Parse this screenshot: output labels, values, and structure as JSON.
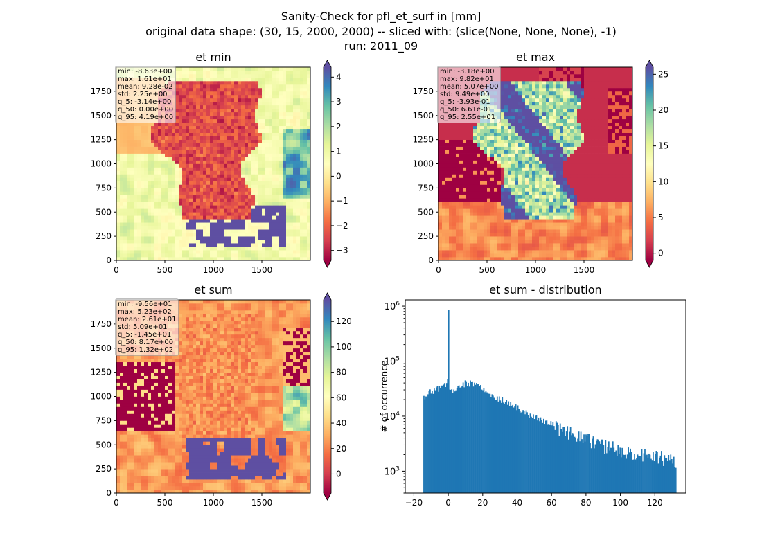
{
  "figure": {
    "title_lines": [
      "Sanity-Check for pfl_et_surf in [mm]",
      "original data shape: (30, 15, 2000, 2000) -- sliced with: (slice(None, None, None), -1)",
      "run: 2011_09"
    ]
  },
  "colors": {
    "hist_bar": "#1f77b4",
    "cmap": "Spectral"
  },
  "chart_data": [
    {
      "type": "heatmap",
      "title": "et min",
      "xlim": [
        0,
        2000
      ],
      "ylim": [
        0,
        2000
      ],
      "xticks": [
        "0",
        "500",
        "1000",
        "1500"
      ],
      "yticks": [
        "0",
        "250",
        "500",
        "750",
        "1000",
        "1250",
        "1500",
        "1750"
      ],
      "colorbar": {
        "range": [
          -3.4,
          4.4
        ],
        "ticks": [
          "−3",
          "−2",
          "−1",
          "0",
          "1",
          "2",
          "3",
          "4"
        ],
        "extend": "both"
      },
      "stats": [
        "min: -8.63e+00",
        "max: 1.61e+01",
        "mean: 9.28e-02",
        "std: 2.25e+00",
        "q_5: -3.14e+00",
        "q_50: 0.00e+00",
        "q_95: 4.19e+00"
      ]
    },
    {
      "type": "heatmap",
      "title": "et max",
      "xlim": [
        0,
        2000
      ],
      "ylim": [
        0,
        2000
      ],
      "xticks": [
        "0",
        "500",
        "1000",
        "1500"
      ],
      "yticks": [
        "0",
        "250",
        "500",
        "750",
        "1000",
        "1250",
        "1500",
        "1750"
      ],
      "colorbar": {
        "range": [
          -1,
          26
        ],
        "ticks": [
          "0",
          "5",
          "10",
          "15",
          "20",
          "25"
        ],
        "extend": "both"
      },
      "stats": [
        "min: -3.18e+00",
        "max: 9.82e+01",
        "mean: 5.07e+00",
        "std: 9.49e+00",
        "q_5: -3.93e-01",
        "q_50: 6.61e-01",
        "q_95: 2.55e+01"
      ]
    },
    {
      "type": "heatmap",
      "title": "et sum",
      "xlim": [
        0,
        2000
      ],
      "ylim": [
        0,
        2000
      ],
      "xticks": [
        "0",
        "500",
        "1000",
        "1500"
      ],
      "yticks": [
        "0",
        "250",
        "500",
        "750",
        "1000",
        "1250",
        "1500",
        "1750"
      ],
      "colorbar": {
        "range": [
          -15,
          137
        ],
        "ticks": [
          "0",
          "20",
          "40",
          "60",
          "80",
          "100",
          "120"
        ],
        "extend": "both"
      },
      "stats": [
        "min: -9.56e+01",
        "max: 5.23e+02",
        "mean: 2.61e+01",
        "std: 5.09e+01",
        "q_5: -1.45e+01",
        "q_50: 8.17e+00",
        "q_95: 1.32e+02"
      ]
    },
    {
      "type": "bar",
      "title": "et sum - distribution",
      "xlabel": "",
      "ylabel": "# of occurrence",
      "yscale": "log",
      "xlim": [
        -25,
        138
      ],
      "ylim": [
        400,
        1300000
      ],
      "xticks": [
        "−20",
        "0",
        "20",
        "40",
        "60",
        "80",
        "100",
        "120"
      ],
      "yticks": [
        "10^3",
        "10^4",
        "10^5",
        "10^6"
      ],
      "bin_range": [
        -14.5,
        132
      ],
      "bin_width": 0.6,
      "spike": {
        "x": 0,
        "y": 850000
      },
      "envelope": [
        [
          -14.5,
          22000
        ],
        [
          -10,
          28000
        ],
        [
          -5,
          33000
        ],
        [
          -2,
          38000
        ],
        [
          0,
          45000
        ],
        [
          1,
          28000
        ],
        [
          5,
          33000
        ],
        [
          10,
          40000
        ],
        [
          15,
          38000
        ],
        [
          20,
          33000
        ],
        [
          30,
          20000
        ],
        [
          40,
          14000
        ],
        [
          50,
          9500
        ],
        [
          60,
          7000
        ],
        [
          70,
          5000
        ],
        [
          80,
          3800
        ],
        [
          90,
          3000
        ],
        [
          100,
          2500
        ],
        [
          110,
          2100
        ],
        [
          120,
          1900
        ],
        [
          132,
          1600
        ]
      ]
    }
  ]
}
